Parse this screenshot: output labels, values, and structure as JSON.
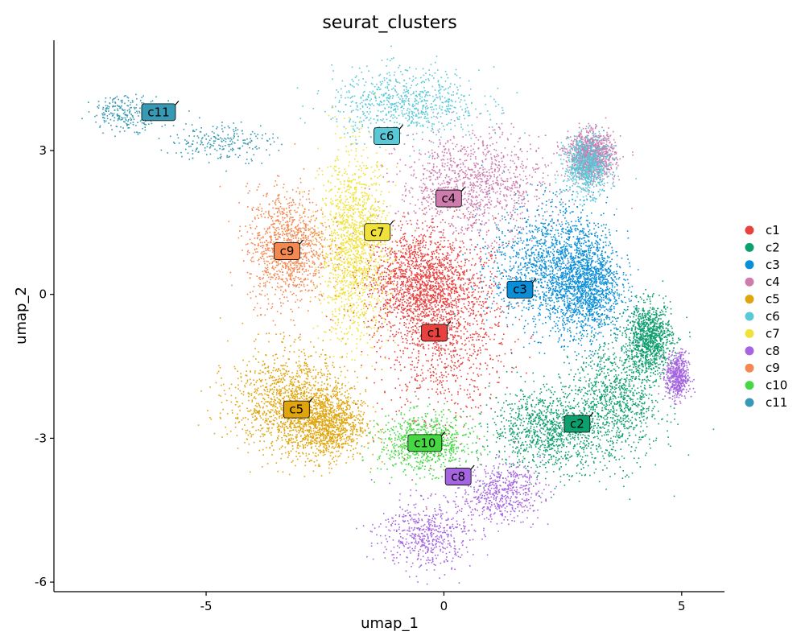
{
  "chart_data": {
    "type": "scatter",
    "title": "seurat_clusters",
    "xlabel": "umap_1",
    "ylabel": "umap_2",
    "xlim": [
      -8.2,
      5.9
    ],
    "ylim": [
      -6.2,
      5.3
    ],
    "xticks": [
      -5,
      0,
      5
    ],
    "xtick_labels": [
      "-5",
      "0",
      "5"
    ],
    "yticks": [
      -6,
      -3,
      0,
      3
    ],
    "ytick_labels": [
      "-6",
      "-3",
      "0",
      "3"
    ],
    "grid": false,
    "legend": "right",
    "clusters": [
      {
        "name": "c1",
        "color": "#E8423F",
        "label_pos": [
          -0.2,
          -0.8
        ],
        "spread": [
          [
            0.0,
            -0.6,
            1.1,
            1.6
          ],
          [
            -0.6,
            0.3,
            0.9,
            0.9
          ]
        ],
        "n": 2600
      },
      {
        "name": "c2",
        "color": "#0E9F6E",
        "label_pos": [
          2.8,
          -2.7
        ],
        "spread": [
          [
            3.6,
            -2.2,
            0.8,
            1.1
          ],
          [
            2.2,
            -2.8,
            1.0,
            0.7
          ],
          [
            4.3,
            -0.9,
            0.4,
            0.6
          ]
        ],
        "n": 3000
      },
      {
        "name": "c3",
        "color": "#0A8ED8",
        "label_pos": [
          1.6,
          0.1
        ],
        "spread": [
          [
            2.2,
            0.6,
            1.0,
            1.1
          ],
          [
            3.0,
            0.2,
            0.6,
            0.9
          ]
        ],
        "n": 2700
      },
      {
        "name": "c4",
        "color": "#CE7BAE",
        "label_pos": [
          0.1,
          2.0
        ],
        "spread": [
          [
            0.6,
            2.3,
            1.3,
            0.9
          ],
          [
            3.1,
            2.9,
            0.4,
            0.4
          ]
        ],
        "n": 2200
      },
      {
        "name": "c5",
        "color": "#E0A50D",
        "label_pos": [
          -3.1,
          -2.4
        ],
        "spread": [
          [
            -3.3,
            -2.2,
            1.0,
            0.9
          ],
          [
            -2.5,
            -2.7,
            0.7,
            0.6
          ]
        ],
        "n": 2300
      },
      {
        "name": "c6",
        "color": "#59C9D8",
        "label_pos": [
          -1.2,
          3.3
        ],
        "spread": [
          [
            -0.8,
            4.0,
            1.3,
            0.6
          ],
          [
            3.0,
            2.7,
            0.4,
            0.5
          ]
        ],
        "n": 1500
      },
      {
        "name": "c7",
        "color": "#F0E23A",
        "label_pos": [
          -1.4,
          1.3
        ],
        "spread": [
          [
            -1.9,
            1.0,
            0.6,
            1.6
          ]
        ],
        "n": 1500
      },
      {
        "name": "c8",
        "color": "#A565E0",
        "label_pos": [
          0.3,
          -3.8
        ],
        "spread": [
          [
            -0.4,
            -5.0,
            0.8,
            0.6
          ],
          [
            1.2,
            -4.1,
            0.7,
            0.5
          ],
          [
            4.9,
            -1.7,
            0.2,
            0.4
          ]
        ],
        "n": 1600
      },
      {
        "name": "c9",
        "color": "#F38950",
        "label_pos": [
          -3.3,
          0.9
        ],
        "spread": [
          [
            -3.3,
            1.0,
            0.7,
            1.0
          ]
        ],
        "n": 1100
      },
      {
        "name": "c10",
        "color": "#45D843",
        "label_pos": [
          -0.4,
          -3.1
        ],
        "spread": [
          [
            -0.4,
            -3.1,
            0.8,
            0.5
          ]
        ],
        "n": 800
      },
      {
        "name": "c11",
        "color": "#3799B3",
        "label_pos": [
          -6.0,
          3.8
        ],
        "spread": [
          [
            -6.7,
            3.8,
            0.6,
            0.3
          ],
          [
            -4.7,
            3.2,
            0.9,
            0.35
          ]
        ],
        "n": 450
      }
    ]
  }
}
